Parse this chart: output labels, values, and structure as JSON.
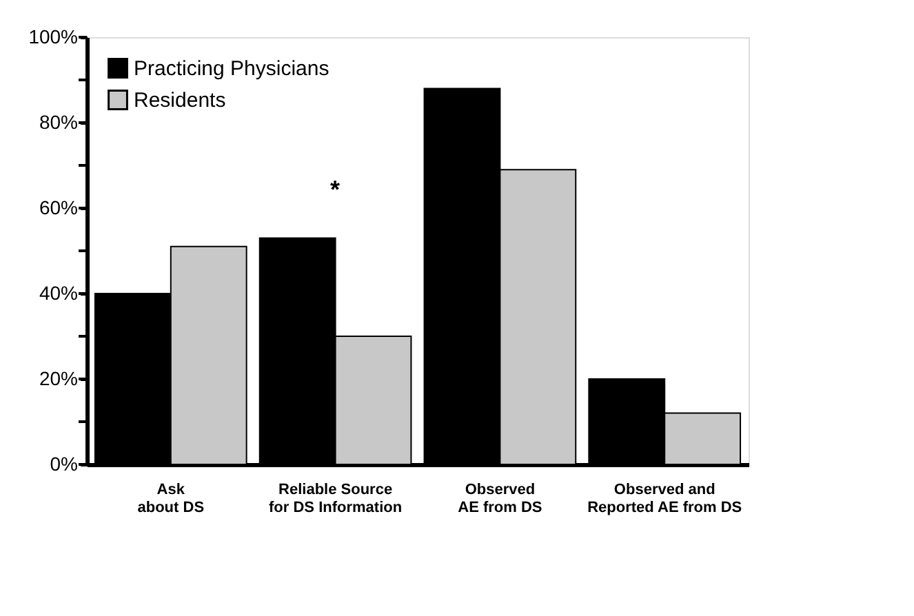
{
  "chart_data": {
    "type": "bar",
    "categories": [
      "Ask\nabout DS",
      "Reliable Source\nfor DS Information",
      "Observed\nAE from DS",
      "Observed and\nReported AE from DS"
    ],
    "series": [
      {
        "name": "Practicing Physicians",
        "color": "#000000",
        "values": [
          40,
          53,
          88,
          20
        ]
      },
      {
        "name": "Residents",
        "color": "#c8c8c8",
        "values": [
          51,
          30,
          69,
          12
        ]
      }
    ],
    "ylim": [
      0,
      100
    ],
    "yticks": [
      {
        "value": 0,
        "label": "0%"
      },
      {
        "value": 10,
        "label": null
      },
      {
        "value": 20,
        "label": "20%"
      },
      {
        "value": 30,
        "label": null
      },
      {
        "value": 40,
        "label": "40%"
      },
      {
        "value": 50,
        "label": null
      },
      {
        "value": 60,
        "label": "60%"
      },
      {
        "value": 70,
        "label": null
      },
      {
        "value": 80,
        "label": "80%"
      },
      {
        "value": 90,
        "label": null
      },
      {
        "value": 100,
        "label": "100%"
      }
    ],
    "annotations": [
      "*"
    ],
    "grid": false,
    "legend": "top left"
  }
}
